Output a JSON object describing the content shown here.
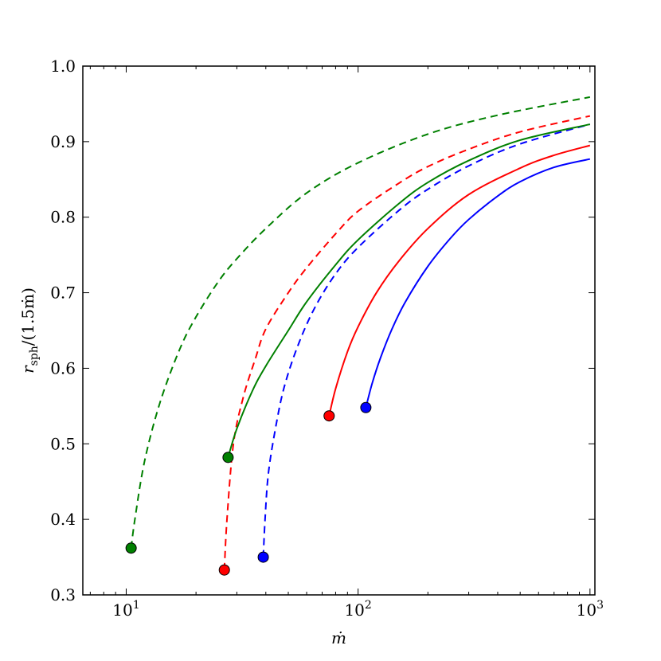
{
  "chart_data": {
    "type": "line",
    "xscale": "log",
    "xlim": [
      6.5,
      1050
    ],
    "ylim": [
      0.3,
      1.0
    ],
    "grid": false,
    "xlabel": "ṁ",
    "ylabel": "r_sph/(1.5ṁ)",
    "yticks": [
      0.3,
      0.4,
      0.5,
      0.6,
      0.7,
      0.8,
      0.9,
      1.0
    ],
    "ytick_labels": [
      "0.3",
      "0.4",
      "0.5",
      "0.6",
      "0.7",
      "0.8",
      "0.9",
      "1.0"
    ],
    "xticks": [
      10,
      100,
      1000
    ],
    "xtick_labels": [
      {
        "base": "10",
        "exp": "1"
      },
      {
        "base": "10",
        "exp": "2"
      },
      {
        "base": "10",
        "exp": "3"
      }
    ],
    "series": [
      {
        "color": "#008000",
        "dash": "dashed",
        "start": [
          10.5,
          0.362
        ],
        "x": [
          10.5,
          10.9,
          12,
          14,
          17,
          20,
          25,
          30,
          40,
          60,
          100,
          200,
          400,
          1000
        ],
        "y": [
          0.362,
          0.4,
          0.477,
          0.555,
          0.625,
          0.668,
          0.715,
          0.745,
          0.785,
          0.832,
          0.872,
          0.91,
          0.935,
          0.959
        ]
      },
      {
        "color": "#ff0000",
        "dash": "dashed",
        "start": [
          26.5,
          0.333
        ],
        "x": [
          26.5,
          27.2,
          29,
          32,
          36,
          40,
          50,
          60,
          80,
          100,
          150,
          200,
          300,
          500,
          1000
        ],
        "y": [
          0.333,
          0.4,
          0.5,
          0.562,
          0.612,
          0.652,
          0.7,
          0.733,
          0.778,
          0.808,
          0.845,
          0.867,
          0.89,
          0.913,
          0.934
        ]
      },
      {
        "color": "#0000ff",
        "dash": "dashed",
        "start": [
          39,
          0.35
        ],
        "x": [
          39,
          39.7,
          41,
          44,
          48,
          55,
          65,
          80,
          100,
          150,
          200,
          300,
          500,
          1000
        ],
        "y": [
          0.35,
          0.4,
          0.46,
          0.52,
          0.575,
          0.63,
          0.68,
          0.725,
          0.76,
          0.809,
          0.837,
          0.868,
          0.897,
          0.923
        ]
      },
      {
        "color": "#008000",
        "dash": "solid",
        "start": [
          27.5,
          0.482
        ],
        "x": [
          27.5,
          30,
          35,
          40,
          50,
          60,
          80,
          100,
          150,
          200,
          300,
          500,
          1000
        ],
        "y": [
          0.482,
          0.52,
          0.57,
          0.603,
          0.65,
          0.688,
          0.737,
          0.77,
          0.818,
          0.846,
          0.875,
          0.902,
          0.923
        ]
      },
      {
        "color": "#ff0000",
        "dash": "solid",
        "start": [
          75,
          0.537
        ],
        "x": [
          75,
          80,
          90,
          100,
          120,
          150,
          200,
          300,
          500,
          700,
          1000
        ],
        "y": [
          0.537,
          0.573,
          0.622,
          0.655,
          0.7,
          0.742,
          0.785,
          0.83,
          0.865,
          0.882,
          0.895
        ]
      },
      {
        "color": "#0000ff",
        "dash": "solid",
        "start": [
          108,
          0.548
        ],
        "x": [
          108,
          115,
          125,
          140,
          160,
          200,
          250,
          300,
          400,
          500,
          700,
          1000
        ],
        "y": [
          0.548,
          0.58,
          0.614,
          0.652,
          0.688,
          0.735,
          0.772,
          0.797,
          0.828,
          0.847,
          0.866,
          0.877
        ]
      }
    ]
  }
}
